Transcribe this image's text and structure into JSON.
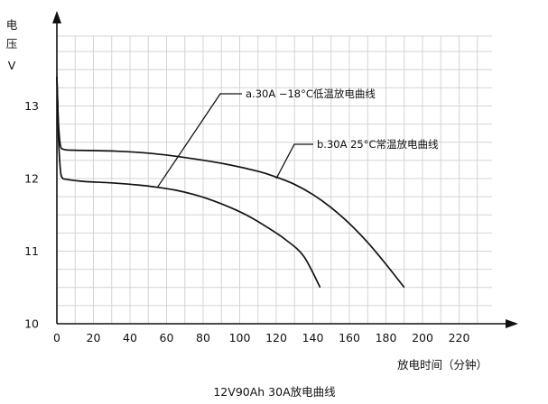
{
  "chart_data": {
    "type": "line",
    "title": "12V90Ah 30A放电曲线",
    "xlabel": "放电时间（分钟）",
    "ylabel": [
      "电",
      "压",
      "V"
    ],
    "xlim": [
      0,
      240
    ],
    "ylim": [
      10,
      14
    ],
    "xticks": [
      0,
      20,
      40,
      60,
      80,
      100,
      120,
      140,
      160,
      180,
      200,
      220
    ],
    "yticks": [
      10,
      11,
      12,
      13
    ],
    "grid": true,
    "series": [
      {
        "name": "a.30A −18°C低温放电曲线",
        "points": [
          [
            0,
            13.4
          ],
          [
            0.5,
            13.0
          ],
          [
            1,
            12.5
          ],
          [
            2,
            12.1
          ],
          [
            3,
            12.01
          ],
          [
            5,
            11.99
          ],
          [
            15,
            11.96
          ],
          [
            30,
            11.94
          ],
          [
            45,
            11.91
          ],
          [
            55,
            11.88
          ],
          [
            65,
            11.84
          ],
          [
            75,
            11.78
          ],
          [
            85,
            11.7
          ],
          [
            95,
            11.6
          ],
          [
            105,
            11.48
          ],
          [
            115,
            11.33
          ],
          [
            125,
            11.16
          ],
          [
            135,
            10.93
          ],
          [
            144,
            10.5
          ]
        ],
        "label_at": [
          55,
          11.88
        ]
      },
      {
        "name": "b.30A 25°C常温放电曲线",
        "points": [
          [
            0,
            13.4
          ],
          [
            0.5,
            13.0
          ],
          [
            1,
            12.7
          ],
          [
            2,
            12.45
          ],
          [
            4,
            12.4
          ],
          [
            10,
            12.39
          ],
          [
            30,
            12.38
          ],
          [
            50,
            12.35
          ],
          [
            70,
            12.29
          ],
          [
            90,
            12.21
          ],
          [
            110,
            12.1
          ],
          [
            120,
            12.02
          ],
          [
            130,
            11.92
          ],
          [
            140,
            11.78
          ],
          [
            150,
            11.6
          ],
          [
            160,
            11.38
          ],
          [
            170,
            11.12
          ],
          [
            180,
            10.82
          ],
          [
            190,
            10.5
          ]
        ],
        "label_at": [
          120,
          12.0
        ]
      }
    ]
  }
}
